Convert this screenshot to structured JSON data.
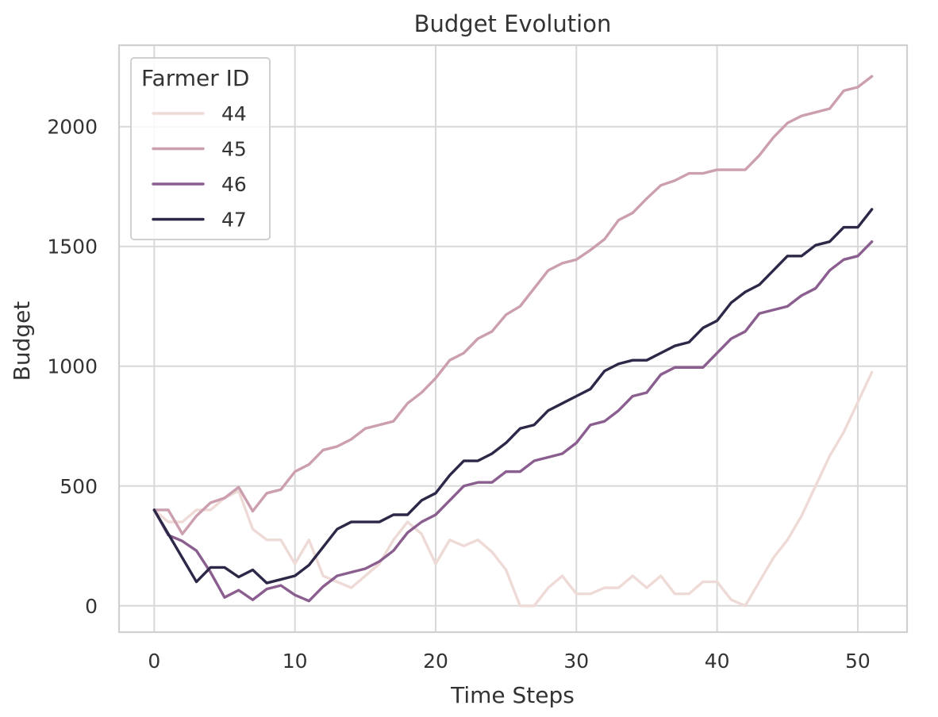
{
  "chart_data": {
    "type": "line",
    "title": "Budget Evolution",
    "xlabel": "Time Steps",
    "ylabel": "Budget",
    "xlim": [
      -2.5,
      53.5
    ],
    "ylim": [
      -110,
      2340
    ],
    "xticks": [
      0,
      10,
      20,
      30,
      40,
      50
    ],
    "yticks": [
      0,
      500,
      1000,
      1500,
      2000
    ],
    "grid": true,
    "legend": {
      "title": "Farmer ID",
      "placement": "top-left"
    },
    "x": [
      0,
      1,
      2,
      3,
      4,
      5,
      6,
      7,
      8,
      9,
      10,
      11,
      12,
      13,
      14,
      15,
      16,
      17,
      18,
      19,
      20,
      21,
      22,
      23,
      24,
      25,
      26,
      27,
      28,
      29,
      30,
      31,
      32,
      33,
      34,
      35,
      36,
      37,
      38,
      39,
      40,
      41,
      42,
      43,
      44,
      45,
      46,
      47,
      48,
      49,
      50,
      51
    ],
    "series": [
      {
        "name": "44",
        "color": "#eedad6",
        "values": [
          400,
          350,
          350,
          400,
          400,
          450,
          480,
          320,
          275,
          275,
          175,
          275,
          125,
          100,
          75,
          125,
          175,
          275,
          350,
          300,
          175,
          275,
          250,
          275,
          225,
          150,
          0,
          0,
          75,
          125,
          50,
          50,
          75,
          75,
          125,
          75,
          125,
          50,
          50,
          100,
          100,
          25,
          0,
          100,
          200,
          275,
          375,
          500,
          625,
          725,
          850,
          975
        ]
      },
      {
        "name": "45",
        "color": "#cc9fb0",
        "values": [
          400,
          400,
          300,
          375,
          430,
          450,
          495,
          395,
          470,
          485,
          560,
          590,
          650,
          665,
          695,
          740,
          755,
          770,
          845,
          890,
          950,
          1025,
          1055,
          1115,
          1145,
          1215,
          1250,
          1325,
          1400,
          1430,
          1445,
          1485,
          1530,
          1610,
          1640,
          1700,
          1755,
          1775,
          1805,
          1805,
          1820,
          1820,
          1820,
          1880,
          1955,
          2015,
          2045,
          2060,
          2075,
          2150,
          2165,
          2210
        ]
      },
      {
        "name": "46",
        "color": "#8a5e8e",
        "values": [
          400,
          295,
          270,
          230,
          140,
          35,
          65,
          25,
          70,
          85,
          45,
          20,
          80,
          125,
          140,
          155,
          185,
          230,
          305,
          350,
          380,
          440,
          500,
          515,
          515,
          560,
          560,
          605,
          620,
          635,
          680,
          755,
          770,
          815,
          875,
          890,
          965,
          995,
          995,
          995,
          1055,
          1115,
          1145,
          1220,
          1235,
          1250,
          1295,
          1325,
          1400,
          1445,
          1460,
          1520
        ]
      },
      {
        "name": "47",
        "color": "#2e2848",
        "values": [
          400,
          300,
          200,
          100,
          160,
          160,
          120,
          150,
          95,
          110,
          125,
          170,
          245,
          320,
          350,
          350,
          350,
          380,
          380,
          440,
          470,
          545,
          605,
          605,
          635,
          680,
          740,
          755,
          815,
          845,
          875,
          905,
          980,
          1010,
          1025,
          1025,
          1055,
          1085,
          1100,
          1160,
          1190,
          1265,
          1310,
          1340,
          1400,
          1460,
          1460,
          1505,
          1520,
          1580,
          1580,
          1655
        ]
      }
    ]
  }
}
